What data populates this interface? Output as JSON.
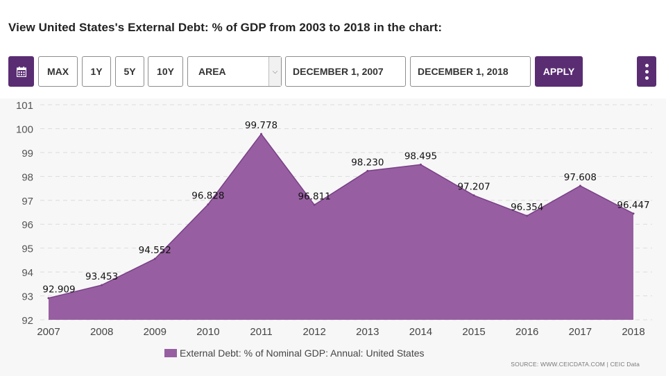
{
  "heading": "View United States's External Debt: % of GDP from 2003 to 2018 in the chart:",
  "toolbar": {
    "calendar_icon": "calendar-icon",
    "ranges": [
      "MAX",
      "1Y",
      "5Y",
      "10Y"
    ],
    "chart_type": "AREA",
    "start_date": "DECEMBER 1, 2007",
    "end_date": "DECEMBER 1, 2018",
    "apply_label": "APPLY",
    "menu_icon": "more-vertical-icon"
  },
  "colors": {
    "accent": "#5a2d73",
    "area_fill": "#975fa1",
    "area_stroke": "#7a3f87"
  },
  "chart_data": {
    "type": "area",
    "title": "View United States's External Debt: % of GDP from 2003 to 2018 in the chart:",
    "categories": [
      "2007",
      "2008",
      "2009",
      "2010",
      "2011",
      "2012",
      "2013",
      "2014",
      "2015",
      "2016",
      "2017",
      "2018"
    ],
    "series": [
      {
        "name": "External Debt: % of Nominal GDP: Annual: United States",
        "values": [
          92.909,
          93.453,
          94.552,
          96.828,
          99.778,
          96.811,
          98.23,
          98.495,
          97.207,
          96.354,
          97.608,
          96.447
        ],
        "labels": [
          "92.909",
          "93.453",
          "94.552",
          "96.828",
          "99.778",
          "96.811",
          "98.230",
          "98.495",
          "97.207",
          "96.354",
          "97.608",
          "96.447"
        ]
      }
    ],
    "ylim": [
      92,
      101
    ],
    "yticks": [
      "92",
      "93",
      "94",
      "95",
      "96",
      "97",
      "98",
      "99",
      "100",
      "101"
    ],
    "grid": true,
    "legend": "bottom-center"
  },
  "source": "SOURCE: WWW.CEICDATA.COM | CEIC Data"
}
